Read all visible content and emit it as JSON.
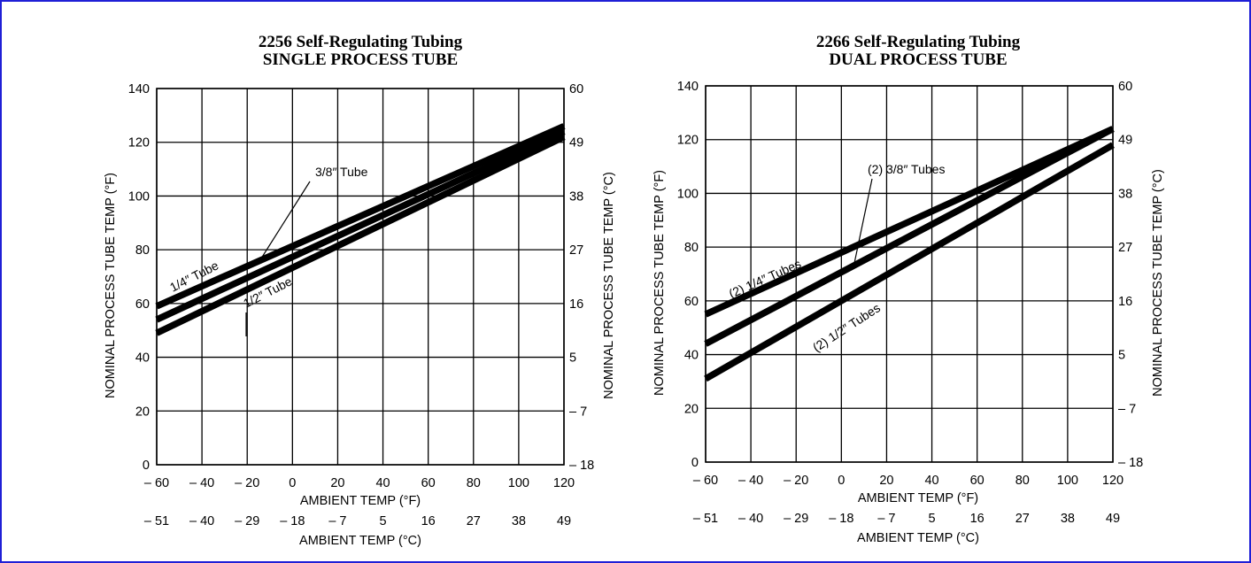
{
  "colors": {
    "frame": "#1f1fd6",
    "ink": "#000000",
    "background": "#ffffff"
  },
  "chart_data": [
    {
      "type": "line",
      "title": "2256 Self-Regulating Tubing",
      "subtitle": "SINGLE PROCESS TUBE",
      "xlabel": "AMBIENT TEMP (°F)",
      "xlabel2": "AMBIENT TEMP (°C)",
      "ylabel": "NOMINAL PROCESS TUBE TEMP (°F)",
      "ylabel2": "NOMINAL PROCESS TUBE TEMP (°C)",
      "xlim": [
        -60,
        120
      ],
      "ylim": [
        0,
        140
      ],
      "x_ticks": [
        "– 60",
        "– 40",
        "– 20",
        "0",
        "20",
        "40",
        "60",
        "80",
        "100",
        "120"
      ],
      "x2_ticks": [
        "– 51",
        "– 40",
        "– 29",
        "– 18",
        "– 7",
        "5",
        "16",
        "27",
        "38",
        "49"
      ],
      "y_ticks": [
        "0",
        "20",
        "40",
        "60",
        "80",
        "100",
        "120",
        "140"
      ],
      "y2_ticks": [
        "– 18",
        "– 7",
        "5",
        "16",
        "27",
        "38",
        "49",
        "60"
      ],
      "grid": true,
      "series": [
        {
          "name": "1/4″ Tube",
          "x": [
            -60,
            120
          ],
          "y": [
            59,
            126
          ]
        },
        {
          "name": "3/8″ Tube",
          "x": [
            -60,
            120
          ],
          "y": [
            54,
            124
          ]
        },
        {
          "name": "1/2″ Tube",
          "x": [
            -60,
            120
          ],
          "y": [
            49,
            122
          ]
        }
      ]
    },
    {
      "type": "line",
      "title": "2266 Self-Regulating Tubing",
      "subtitle": "DUAL PROCESS TUBE",
      "xlabel": "AMBIENT TEMP (°F)",
      "xlabel2": "AMBIENT TEMP (°C)",
      "ylabel": "NOMINAL PROCESS TUBE TEMP (°F)",
      "ylabel2": "NOMINAL PROCESS TUBE TEMP (°C)",
      "xlim": [
        -60,
        120
      ],
      "ylim": [
        0,
        140
      ],
      "x_ticks": [
        "– 60",
        "– 40",
        "– 20",
        "0",
        "20",
        "40",
        "60",
        "80",
        "100",
        "120"
      ],
      "x2_ticks": [
        "– 51",
        "– 40",
        "– 29",
        "– 18",
        "– 7",
        "5",
        "16",
        "27",
        "38",
        "49"
      ],
      "y_ticks": [
        "0",
        "20",
        "40",
        "60",
        "80",
        "100",
        "120",
        "140"
      ],
      "y2_ticks": [
        "– 18",
        "– 7",
        "5",
        "16",
        "27",
        "38",
        "49",
        "60"
      ],
      "grid": true,
      "series": [
        {
          "name": "(2) 1/4″ Tubes",
          "x": [
            -60,
            120
          ],
          "y": [
            55,
            124
          ]
        },
        {
          "name": "(2) 3/8″ Tubes",
          "x": [
            -60,
            120
          ],
          "y": [
            44,
            124
          ]
        },
        {
          "name": "(2) 1/2″ Tubes",
          "x": [
            -60,
            120
          ],
          "y": [
            31,
            118
          ]
        }
      ]
    }
  ]
}
